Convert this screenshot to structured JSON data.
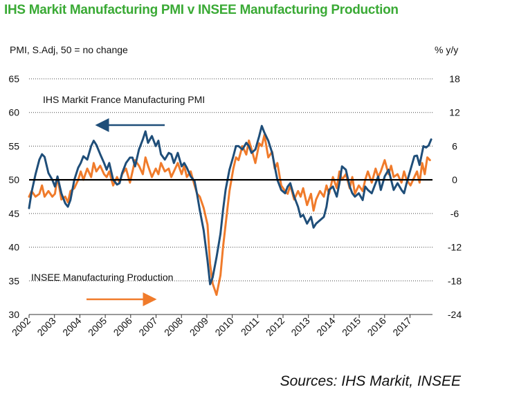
{
  "title": "IHS Markit Manufacturing PMI v INSEE Manufacturing Production",
  "sources": "Sources: IHS Markit, INSEE",
  "chart_data": {
    "type": "line",
    "title": "IHS Markit Manufacturing PMI v INSEE Manufacturing Production",
    "left_axis_label": "PMI, S.Adj, 50 = no change",
    "right_axis_label": "% y/y",
    "left_ylim": [
      30,
      65
    ],
    "left_ticks": [
      "30",
      "35",
      "40",
      "45",
      "50",
      "55",
      "60",
      "65"
    ],
    "right_ylim": [
      -24,
      18
    ],
    "right_ticks": [
      "-24",
      "-18",
      "-12",
      "-6",
      "0",
      "6",
      "12",
      "18"
    ],
    "x_range": [
      2002,
      2017.6
    ],
    "x_ticks": [
      "2002",
      "2003",
      "2004",
      "2005",
      "2006",
      "2007",
      "2008",
      "2009",
      "2010",
      "2011",
      "2012",
      "2013",
      "2014",
      "2015",
      "2016",
      "2017",
      "2018"
    ],
    "grid": "horizontal dotted",
    "reference_line": 50,
    "annotations": {
      "pmi_label": "IHS Markit France Manufacturing PMI",
      "production_label": "INSEE Manufacturing Production"
    },
    "series": [
      {
        "name": "IHS Markit France Manufacturing PMI",
        "axis": "left",
        "color": "#1f4e79",
        "points": [
          [
            2002.0,
            45.8
          ],
          [
            2002.1,
            48.2
          ],
          [
            2002.25,
            50.8
          ],
          [
            2002.4,
            53.0
          ],
          [
            2002.5,
            53.8
          ],
          [
            2002.6,
            53.4
          ],
          [
            2002.75,
            51.0
          ],
          [
            2002.9,
            50.0
          ],
          [
            2003.0,
            49.0
          ],
          [
            2003.1,
            50.5
          ],
          [
            2003.25,
            48.0
          ],
          [
            2003.4,
            46.5
          ],
          [
            2003.5,
            46.0
          ],
          [
            2003.6,
            47.0
          ],
          [
            2003.75,
            50.0
          ],
          [
            2003.9,
            51.8
          ],
          [
            2004.0,
            52.5
          ],
          [
            2004.1,
            53.5
          ],
          [
            2004.25,
            53.0
          ],
          [
            2004.4,
            55.0
          ],
          [
            2004.5,
            55.8
          ],
          [
            2004.6,
            55.2
          ],
          [
            2004.75,
            53.8
          ],
          [
            2004.9,
            52.5
          ],
          [
            2005.0,
            51.5
          ],
          [
            2005.1,
            52.5
          ],
          [
            2005.25,
            50.0
          ],
          [
            2005.4,
            49.3
          ],
          [
            2005.5,
            49.5
          ],
          [
            2005.6,
            51.0
          ],
          [
            2005.75,
            52.5
          ],
          [
            2005.9,
            53.3
          ],
          [
            2006.0,
            53.3
          ],
          [
            2006.1,
            52.0
          ],
          [
            2006.25,
            54.5
          ],
          [
            2006.4,
            56.0
          ],
          [
            2006.5,
            57.2
          ],
          [
            2006.6,
            55.5
          ],
          [
            2006.75,
            56.5
          ],
          [
            2006.9,
            55.0
          ],
          [
            2007.0,
            55.8
          ],
          [
            2007.1,
            53.8
          ],
          [
            2007.25,
            53.0
          ],
          [
            2007.4,
            54.0
          ],
          [
            2007.5,
            53.8
          ],
          [
            2007.6,
            52.5
          ],
          [
            2007.75,
            54.0
          ],
          [
            2007.9,
            52.0
          ],
          [
            2008.0,
            52.5
          ],
          [
            2008.1,
            51.8
          ],
          [
            2008.25,
            50.5
          ],
          [
            2008.4,
            49.8
          ],
          [
            2008.5,
            47.8
          ],
          [
            2008.6,
            45.5
          ],
          [
            2008.75,
            42.5
          ],
          [
            2008.9,
            38.0
          ],
          [
            2009.0,
            34.5
          ],
          [
            2009.1,
            35.5
          ],
          [
            2009.25,
            38.5
          ],
          [
            2009.4,
            42.0
          ],
          [
            2009.5,
            45.5
          ],
          [
            2009.6,
            48.5
          ],
          [
            2009.75,
            51.5
          ],
          [
            2009.9,
            53.5
          ],
          [
            2010.0,
            55.0
          ],
          [
            2010.1,
            55.0
          ],
          [
            2010.25,
            54.5
          ],
          [
            2010.4,
            55.5
          ],
          [
            2010.5,
            55.0
          ],
          [
            2010.6,
            54.0
          ],
          [
            2010.75,
            54.5
          ],
          [
            2010.9,
            56.5
          ],
          [
            2011.0,
            58.0
          ],
          [
            2011.1,
            57.0
          ],
          [
            2011.25,
            55.8
          ],
          [
            2011.4,
            54.0
          ],
          [
            2011.5,
            52.0
          ],
          [
            2011.6,
            50.0
          ],
          [
            2011.75,
            48.5
          ],
          [
            2011.9,
            48.0
          ],
          [
            2012.0,
            49.0
          ],
          [
            2012.1,
            49.5
          ],
          [
            2012.25,
            47.5
          ],
          [
            2012.4,
            46.0
          ],
          [
            2012.5,
            44.5
          ],
          [
            2012.6,
            44.8
          ],
          [
            2012.75,
            43.5
          ],
          [
            2012.9,
            44.5
          ],
          [
            2013.0,
            42.9
          ],
          [
            2013.1,
            43.5
          ],
          [
            2013.25,
            44.0
          ],
          [
            2013.4,
            44.5
          ],
          [
            2013.5,
            46.0
          ],
          [
            2013.6,
            48.5
          ],
          [
            2013.75,
            49.0
          ],
          [
            2013.9,
            47.5
          ],
          [
            2014.0,
            49.5
          ],
          [
            2014.1,
            52.0
          ],
          [
            2014.25,
            51.5
          ],
          [
            2014.4,
            49.0
          ],
          [
            2014.5,
            48.0
          ],
          [
            2014.6,
            47.5
          ],
          [
            2014.75,
            48.0
          ],
          [
            2014.9,
            47.0
          ],
          [
            2015.0,
            49.0
          ],
          [
            2015.1,
            48.5
          ],
          [
            2015.25,
            48.0
          ],
          [
            2015.4,
            49.5
          ],
          [
            2015.5,
            50.5
          ],
          [
            2015.6,
            48.5
          ],
          [
            2015.75,
            50.5
          ],
          [
            2015.9,
            51.5
          ],
          [
            2016.0,
            50.0
          ],
          [
            2016.1,
            48.5
          ],
          [
            2016.25,
            49.5
          ],
          [
            2016.4,
            48.5
          ],
          [
            2016.5,
            48.0
          ],
          [
            2016.6,
            49.5
          ],
          [
            2016.75,
            51.5
          ],
          [
            2016.9,
            53.5
          ],
          [
            2017.0,
            53.6
          ],
          [
            2017.1,
            52.2
          ],
          [
            2017.25,
            55.0
          ],
          [
            2017.35,
            54.8
          ],
          [
            2017.45,
            55.1
          ],
          [
            2017.55,
            56.0
          ]
        ]
      },
      {
        "name": "INSEE Manufacturing Production",
        "axis": "right",
        "color": "#f07b2b",
        "points": [
          [
            2002.0,
            -3.0
          ],
          [
            2002.1,
            -2.0
          ],
          [
            2002.25,
            -3.0
          ],
          [
            2002.4,
            -2.5
          ],
          [
            2002.5,
            -1.0
          ],
          [
            2002.6,
            -3.0
          ],
          [
            2002.75,
            -2.0
          ],
          [
            2002.9,
            -3.0
          ],
          [
            2003.0,
            -2.5
          ],
          [
            2003.1,
            0.5
          ],
          [
            2003.25,
            -3.5
          ],
          [
            2003.4,
            -3.0
          ],
          [
            2003.5,
            -4.0
          ],
          [
            2003.6,
            -2.0
          ],
          [
            2003.75,
            -1.5
          ],
          [
            2003.9,
            0.0
          ],
          [
            2004.0,
            1.5
          ],
          [
            2004.1,
            0.0
          ],
          [
            2004.25,
            2.0
          ],
          [
            2004.4,
            0.5
          ],
          [
            2004.5,
            3.0
          ],
          [
            2004.6,
            1.5
          ],
          [
            2004.75,
            2.5
          ],
          [
            2004.9,
            1.0
          ],
          [
            2005.0,
            0.5
          ],
          [
            2005.1,
            1.5
          ],
          [
            2005.25,
            -1.0
          ],
          [
            2005.4,
            0.5
          ],
          [
            2005.5,
            -0.5
          ],
          [
            2005.6,
            1.0
          ],
          [
            2005.75,
            2.0
          ],
          [
            2005.9,
            -0.5
          ],
          [
            2006.0,
            1.5
          ],
          [
            2006.1,
            3.5
          ],
          [
            2006.25,
            2.5
          ],
          [
            2006.4,
            1.0
          ],
          [
            2006.5,
            4.0
          ],
          [
            2006.6,
            2.5
          ],
          [
            2006.75,
            0.5
          ],
          [
            2006.9,
            2.0
          ],
          [
            2007.0,
            1.0
          ],
          [
            2007.1,
            3.0
          ],
          [
            2007.25,
            1.5
          ],
          [
            2007.4,
            2.0
          ],
          [
            2007.5,
            0.5
          ],
          [
            2007.6,
            1.5
          ],
          [
            2007.75,
            3.0
          ],
          [
            2007.9,
            1.0
          ],
          [
            2008.0,
            2.5
          ],
          [
            2008.1,
            0.5
          ],
          [
            2008.25,
            1.5
          ],
          [
            2008.4,
            -1.0
          ],
          [
            2008.5,
            -2.5
          ],
          [
            2008.6,
            -3.0
          ],
          [
            2008.75,
            -5.0
          ],
          [
            2008.9,
            -8.0
          ],
          [
            2009.0,
            -15.0
          ],
          [
            2009.1,
            -18.5
          ],
          [
            2009.25,
            -20.5
          ],
          [
            2009.4,
            -17.0
          ],
          [
            2009.5,
            -12.0
          ],
          [
            2009.6,
            -8.0
          ],
          [
            2009.75,
            -2.0
          ],
          [
            2009.9,
            2.0
          ],
          [
            2010.0,
            4.0
          ],
          [
            2010.1,
            3.5
          ],
          [
            2010.25,
            6.0
          ],
          [
            2010.4,
            4.5
          ],
          [
            2010.5,
            7.0
          ],
          [
            2010.6,
            5.5
          ],
          [
            2010.75,
            3.0
          ],
          [
            2010.9,
            6.5
          ],
          [
            2011.0,
            6.0
          ],
          [
            2011.1,
            8.0
          ],
          [
            2011.25,
            4.0
          ],
          [
            2011.4,
            5.0
          ],
          [
            2011.5,
            2.0
          ],
          [
            2011.6,
            3.0
          ],
          [
            2011.75,
            -1.0
          ],
          [
            2011.9,
            -2.0
          ],
          [
            2012.0,
            -2.5
          ],
          [
            2012.1,
            -1.0
          ],
          [
            2012.25,
            -3.5
          ],
          [
            2012.4,
            -2.0
          ],
          [
            2012.5,
            -3.0
          ],
          [
            2012.6,
            -1.5
          ],
          [
            2012.75,
            -4.5
          ],
          [
            2012.9,
            -2.5
          ],
          [
            2013.0,
            -5.5
          ],
          [
            2013.1,
            -3.5
          ],
          [
            2013.25,
            -2.0
          ],
          [
            2013.4,
            -3.0
          ],
          [
            2013.5,
            -1.0
          ],
          [
            2013.6,
            -2.5
          ],
          [
            2013.75,
            0.5
          ],
          [
            2013.9,
            -1.5
          ],
          [
            2014.0,
            1.5
          ],
          [
            2014.1,
            0.0
          ],
          [
            2014.25,
            1.0
          ],
          [
            2014.4,
            -1.5
          ],
          [
            2014.5,
            0.5
          ],
          [
            2014.6,
            -2.5
          ],
          [
            2014.75,
            -1.0
          ],
          [
            2014.9,
            -2.0
          ],
          [
            2015.0,
            0.0
          ],
          [
            2015.1,
            1.5
          ],
          [
            2015.25,
            -0.5
          ],
          [
            2015.4,
            2.0
          ],
          [
            2015.5,
            0.5
          ],
          [
            2015.6,
            1.5
          ],
          [
            2015.75,
            3.5
          ],
          [
            2015.9,
            1.0
          ],
          [
            2016.0,
            2.5
          ],
          [
            2016.1,
            0.5
          ],
          [
            2016.25,
            1.0
          ],
          [
            2016.4,
            -0.5
          ],
          [
            2016.5,
            1.5
          ],
          [
            2016.6,
            0.0
          ],
          [
            2016.75,
            -1.0
          ],
          [
            2016.9,
            0.5
          ],
          [
            2017.0,
            1.5
          ],
          [
            2017.1,
            -0.5
          ],
          [
            2017.2,
            3.0
          ],
          [
            2017.3,
            1.0
          ],
          [
            2017.4,
            4.0
          ],
          [
            2017.5,
            3.5
          ]
        ]
      }
    ]
  }
}
